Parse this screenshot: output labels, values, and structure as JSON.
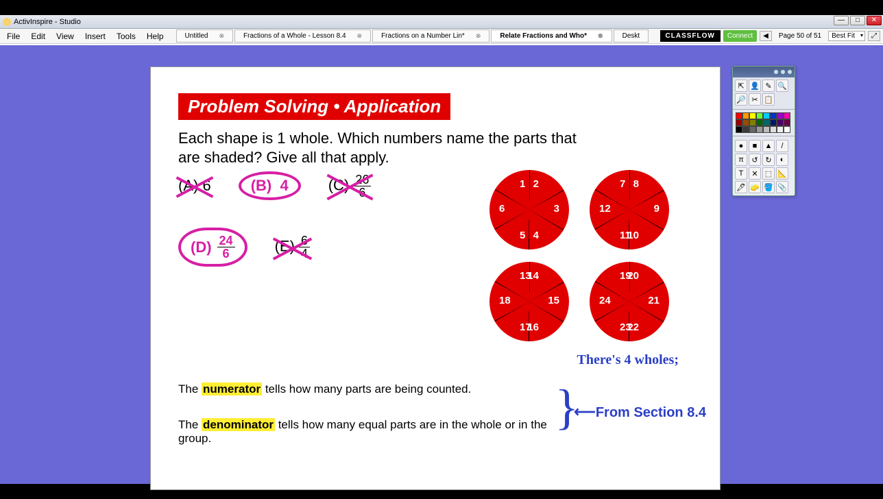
{
  "window": {
    "title": "ActivInspire - Studio"
  },
  "menus": [
    "File",
    "Edit",
    "View",
    "Insert",
    "Tools",
    "Help"
  ],
  "tabs": [
    {
      "label": "Untitled",
      "active": false
    },
    {
      "label": "Fractions of a Whole - Lesson 8.4",
      "active": false
    },
    {
      "label": "Fractions on a Number Lin*",
      "active": false
    },
    {
      "label": "Relate Fractions and Who*",
      "active": true
    },
    {
      "label": "Deskt",
      "active": false
    }
  ],
  "classflow": {
    "brand": "CLASSFLOW",
    "btn": "Connect"
  },
  "page_indicator": "Page 50 of 51",
  "fit": "Best Fit",
  "content": {
    "banner": "Problem Solving • Application",
    "question": "Each shape is 1 whole. Which numbers name the parts that are shaded? Give all that apply.",
    "choices": {
      "A": {
        "label": "(A)",
        "value": "6",
        "crossed": true
      },
      "B": {
        "label": "(B)",
        "value": "4",
        "crossed": false,
        "circled": true
      },
      "C": {
        "label": "(C)",
        "num": "26",
        "den": "6",
        "crossed": true
      },
      "D": {
        "label": "(D)",
        "num": "24",
        "den": "6",
        "crossed": false,
        "circled": true
      },
      "E": {
        "label": "(E)",
        "num": "6",
        "den": "4",
        "crossed": true
      }
    },
    "pies": [
      [
        "1",
        "2",
        "3",
        "4",
        "5",
        "6"
      ],
      [
        "7",
        "8",
        "9",
        "10",
        "11",
        "12"
      ],
      [
        "13",
        "14",
        "15",
        "16",
        "17",
        "18"
      ],
      [
        "19",
        "20",
        "21",
        "22",
        "23",
        "24"
      ]
    ],
    "wholes_note": "There's 4 wholes;",
    "from_section": "From Section 8.4",
    "def1_pre": "The ",
    "def1_hl": "numerator",
    "def1_post": " tells how many parts are being counted.",
    "def2_pre": "The ",
    "def2_hl": "denominator",
    "def2_post": " tells how many equal parts are in the whole or in the group."
  },
  "palette": {
    "swatches": [
      "#ff0000",
      "#ff9900",
      "#ffff00",
      "#66ff33",
      "#00ccff",
      "#0033cc",
      "#9900cc",
      "#ff00aa",
      "#990000",
      "#994c00",
      "#808000",
      "#006600",
      "#006666",
      "#001966",
      "#4c0066",
      "#660044",
      "#000000",
      "#3a3a3a",
      "#666666",
      "#999999",
      "#bbbbbb",
      "#dddddd",
      "#eeeeee",
      "#ffffff"
    ],
    "icons_top": [
      "⇱",
      "👤",
      "✎",
      "🔍",
      "🔎",
      "✂",
      "📋"
    ],
    "icons_mid": [
      "●",
      "■",
      "▲",
      "/",
      "π",
      "↺",
      "↻",
      "◐",
      "T",
      "✕",
      "⬚",
      "📐",
      "🖊",
      "🧽",
      "🪣",
      "📎"
    ]
  }
}
